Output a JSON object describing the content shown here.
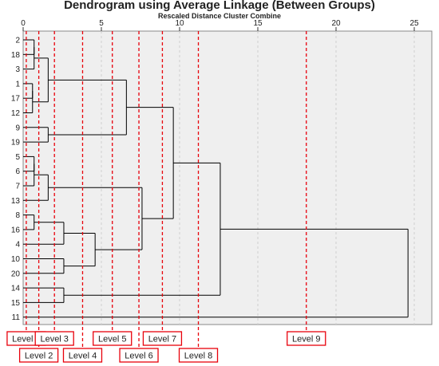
{
  "title": "Dendrogram using Average Linkage (Between Groups)",
  "subtitle": "Rescaled Distance Cluster Combine",
  "chart_data": {
    "type": "dendrogram",
    "x_ticks": [
      0,
      5,
      10,
      15,
      20,
      25
    ],
    "xlim": [
      0,
      25
    ],
    "grid": true,
    "leaves": [
      "2",
      "18",
      "3",
      "1",
      "17",
      "12",
      "9",
      "19",
      "5",
      "6",
      "7",
      "13",
      "8",
      "16",
      "4",
      "10",
      "20",
      "14",
      "15",
      "11"
    ],
    "merges": [
      {
        "children": [
          "leaf:0",
          "leaf:1"
        ],
        "height": 0.7
      },
      {
        "children": [
          "node:0",
          "leaf:2"
        ],
        "height": 0.7
      },
      {
        "children": [
          "leaf:3",
          "leaf:4"
        ],
        "height": 0.6
      },
      {
        "children": [
          "node:2",
          "leaf:5"
        ],
        "height": 0.6
      },
      {
        "children": [
          "node:1",
          "node:3"
        ],
        "height": 1.6
      },
      {
        "children": [
          "leaf:6",
          "leaf:7"
        ],
        "height": 1.6
      },
      {
        "children": [
          "node:4",
          "node:5"
        ],
        "height": 6.6
      },
      {
        "children": [
          "leaf:8",
          "leaf:9"
        ],
        "height": 0.7
      },
      {
        "children": [
          "node:7",
          "leaf:10"
        ],
        "height": 0.7
      },
      {
        "children": [
          "node:8",
          "leaf:11"
        ],
        "height": 1.6
      },
      {
        "children": [
          "leaf:12",
          "leaf:13"
        ],
        "height": 0.7
      },
      {
        "children": [
          "node:10",
          "leaf:14"
        ],
        "height": 2.6
      },
      {
        "children": [
          "leaf:15",
          "leaf:16"
        ],
        "height": 2.6
      },
      {
        "children": [
          "node:11",
          "node:12"
        ],
        "height": 4.6
      },
      {
        "children": [
          "node:9",
          "node:13"
        ],
        "height": 7.6
      },
      {
        "children": [
          "node:6",
          "node:14"
        ],
        "height": 9.6
      },
      {
        "children": [
          "leaf:17",
          "leaf:18"
        ],
        "height": 2.6
      },
      {
        "children": [
          "node:15",
          "node:16"
        ],
        "height": 12.6
      },
      {
        "children": [
          "node:17",
          "leaf:19"
        ],
        "height": 24.6
      }
    ],
    "level_lines": [
      {
        "label": "Level 1",
        "x": 0.2
      },
      {
        "label": "Level 2",
        "x": 1.0
      },
      {
        "label": "Level 3",
        "x": 2.0
      },
      {
        "label": "Level 4",
        "x": 3.8
      },
      {
        "label": "Level 5",
        "x": 5.7
      },
      {
        "label": "Level 6",
        "x": 7.4
      },
      {
        "label": "Level 7",
        "x": 8.9
      },
      {
        "label": "Level 8",
        "x": 11.2
      },
      {
        "label": "Level 9",
        "x": 18.1
      }
    ],
    "colors": {
      "lines": "#000000",
      "plot_bg": "#efefef",
      "grid": "#cfcfcf",
      "level": "#e8000b"
    }
  }
}
